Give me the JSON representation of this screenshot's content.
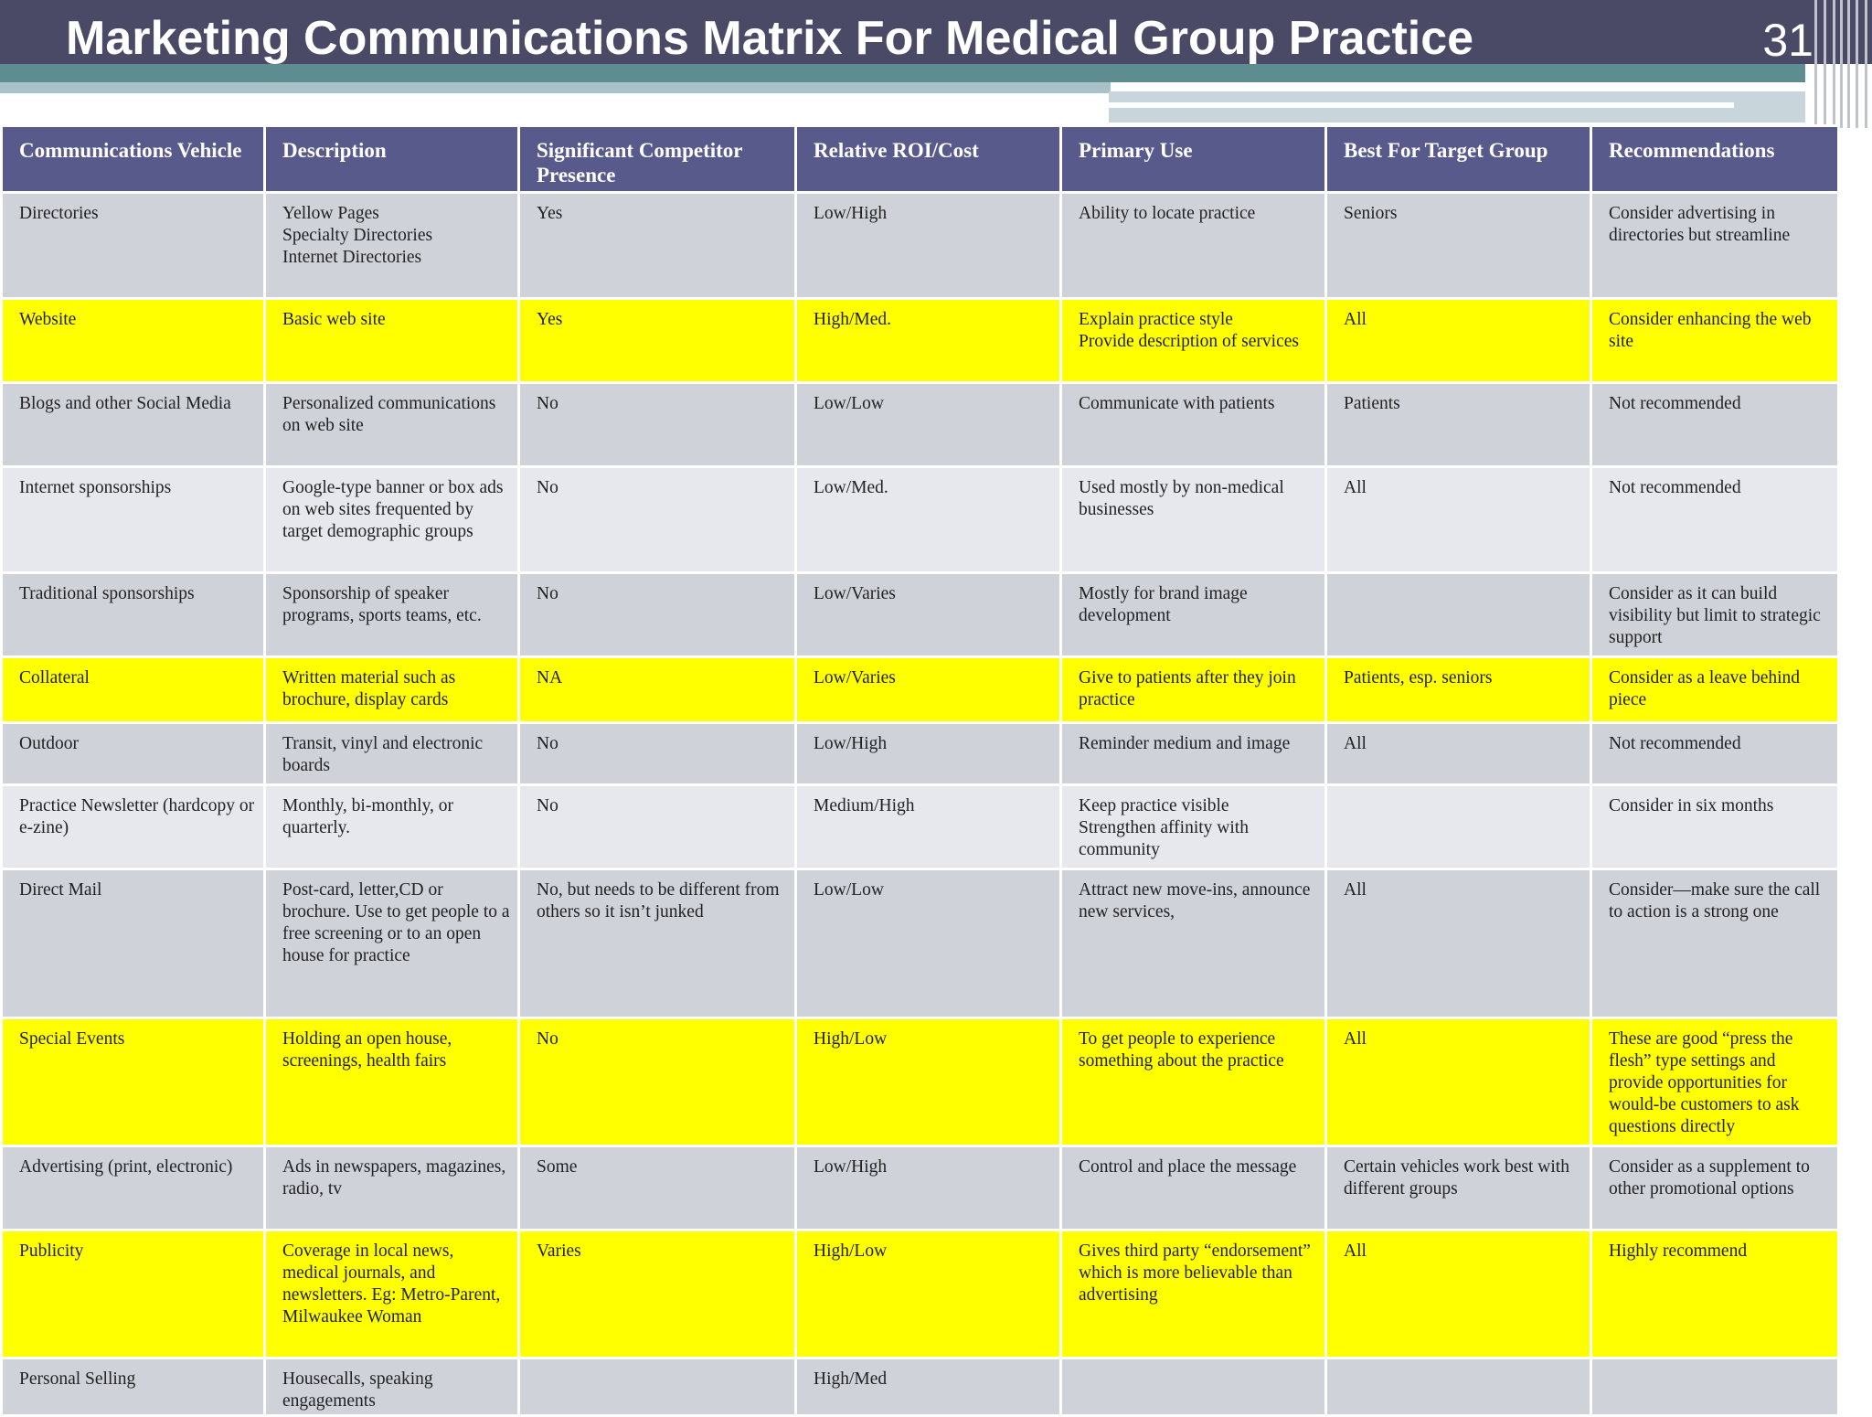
{
  "slide": {
    "title": "Marketing Communications Matrix For Medical Group Practice",
    "number": "31"
  },
  "table": {
    "headers": [
      "Communications Vehicle",
      "Description",
      "Significant Competitor Presence",
      "Relative ROI/Cost",
      "Primary Use",
      "Best For Target Group",
      "Recommendations"
    ],
    "rows": [
      {
        "highlight": false,
        "cells": [
          "Directories",
          "Yellow Pages\nSpecialty  Directories\nInternet Directories",
          "Yes",
          "Low/High",
          "Ability to locate practice",
          "Seniors",
          "Consider advertising in directories but streamline"
        ]
      },
      {
        "highlight": true,
        "cells": [
          "Website",
          "Basic web site",
          "Yes",
          "High/Med.",
          "Explain practice style\nProvide description of services",
          "All",
          "Consider enhancing the web site"
        ]
      },
      {
        "highlight": false,
        "cells": [
          "Blogs  and other Social Media",
          "Personalized communications on web site",
          "No",
          "Low/Low",
          "Communicate with patients",
          "Patients",
          "Not recommended"
        ]
      },
      {
        "highlight": false,
        "cells": [
          "Internet sponsorships",
          "Google-type banner or box ads on web sites frequented by target demographic groups",
          "No",
          "Low/Med.",
          "Used  mostly by non-medical businesses",
          "All",
          "Not recommended"
        ]
      },
      {
        "highlight": false,
        "cells": [
          "Traditional sponsorships",
          "Sponsorship of speaker programs, sports teams, etc.",
          "No",
          "Low/Varies",
          "Mostly for brand image development",
          "",
          "Consider as it can build visibility but limit to strategic  support"
        ]
      },
      {
        "highlight": true,
        "cells": [
          "Collateral",
          "Written material such as brochure, display cards",
          "NA",
          "Low/Varies",
          "Give to patients after they join practice",
          "Patients, esp. seniors",
          "Consider as a leave behind piece"
        ]
      },
      {
        "highlight": false,
        "cells": [
          "Outdoor",
          "Transit, vinyl  and electronic boards",
          "No",
          "Low/High",
          "Reminder medium and image",
          "All",
          "Not recommended"
        ]
      },
      {
        "highlight": false,
        "cells": [
          "Practice Newsletter (hardcopy or e-zine)",
          "Monthly, bi-monthly, or quarterly.",
          "No",
          "Medium/High",
          "Keep practice visible\nStrengthen  affinity with community",
          "",
          "Consider in six months"
        ]
      },
      {
        "highlight": false,
        "cells": [
          "Direct Mail",
          "Post-card, letter,CD or brochure. Use to get people to a free screening or to an open house for practice",
          "No, but needs to be different from  others so it isn’t junked",
          "Low/Low",
          "Attract new move-ins, announce new services,",
          "All",
          "Consider—make sure the call to action is a strong one"
        ]
      },
      {
        "highlight": true,
        "cells": [
          "Special Events",
          "Holding an open house, screenings, health fairs",
          "No",
          "High/Low",
          "To  get people to experience something about the practice",
          "All",
          "These are good “press the flesh” type settings and provide opportunities for would-be customers to ask questions directly"
        ]
      },
      {
        "highlight": false,
        "cells": [
          "Advertising  (print, electronic)",
          "Ads in newspapers, magazines, radio, tv",
          "Some",
          "Low/High",
          "Control and place the message",
          "Certain vehicles work best with different groups",
          "Consider as a supplement to other promotional options"
        ]
      },
      {
        "highlight": true,
        "cells": [
          "Publicity",
          "Coverage in local news, medical journals, and newsletters. Eg:  Metro-Parent, Milwaukee Woman",
          "Varies",
          "High/Low",
          "Gives third party “endorsement” which is more believable than advertising",
          "All",
          "Highly recommend"
        ]
      },
      {
        "highlight": false,
        "cells": [
          "Personal Selling",
          "Housecalls, speaking engagements",
          "",
          "High/Med",
          "",
          "",
          ""
        ]
      }
    ]
  }
}
